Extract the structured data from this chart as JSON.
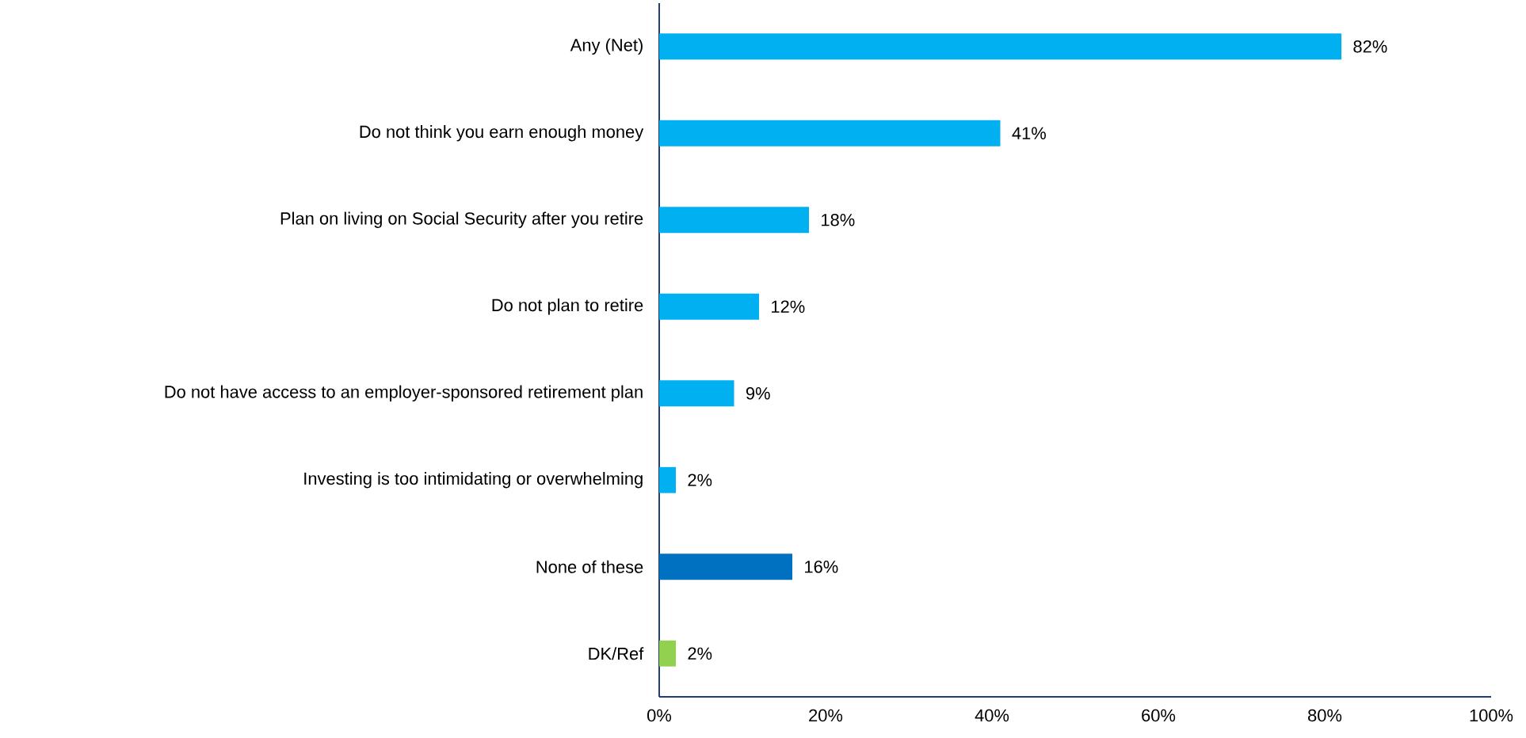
{
  "chart_data": {
    "type": "bar",
    "orientation": "horizontal",
    "categories": [
      "Any (Net)",
      "Do not think you earn enough money",
      "Plan on living on Social Security after you retire",
      "Do not plan to retire",
      "Do not have access to an employer-sponsored retirement plan",
      "Investing is too intimidating or overwhelming",
      "None of these",
      "DK/Ref"
    ],
    "values": [
      82,
      41,
      18,
      12,
      9,
      2,
      16,
      2
    ],
    "colors": [
      "#00b0f0",
      "#00b0f0",
      "#00b0f0",
      "#00b0f0",
      "#00b0f0",
      "#00b0f0",
      "#0070c0",
      "#92d050"
    ],
    "value_labels": [
      "82%",
      "41%",
      "18%",
      "12%",
      "9%",
      "2%",
      "16%",
      "2%"
    ],
    "xlim": [
      0,
      100
    ],
    "xticks": [
      {
        "value": 0,
        "label": "0%"
      },
      {
        "value": 20,
        "label": "20%"
      },
      {
        "value": 40,
        "label": "40%"
      },
      {
        "value": 60,
        "label": "60%"
      },
      {
        "value": 80,
        "label": "80%"
      },
      {
        "value": 100,
        "label": "100%"
      }
    ],
    "grid": false
  }
}
